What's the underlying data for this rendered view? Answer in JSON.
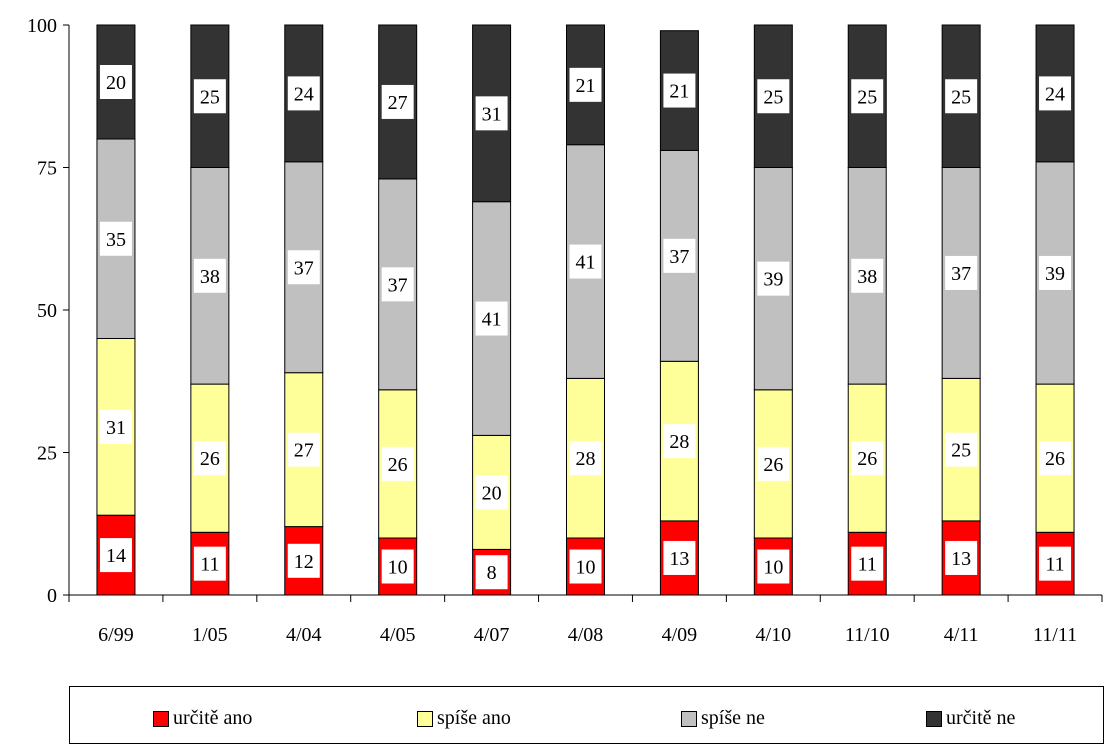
{
  "chart_data": {
    "type": "bar",
    "stacked": true,
    "categories": [
      "6/99",
      "1/05",
      "4/04",
      "4/05",
      "4/07",
      "4/08",
      "4/09",
      "4/10",
      "11/10",
      "4/11",
      "11/11"
    ],
    "series": [
      {
        "name": "určitě ano",
        "color": "#ff0000",
        "values": [
          14,
          11,
          12,
          10,
          8,
          10,
          13,
          10,
          11,
          13,
          11
        ]
      },
      {
        "name": "spíše ano",
        "color": "#ffff99",
        "values": [
          31,
          26,
          27,
          26,
          20,
          28,
          28,
          26,
          26,
          25,
          26
        ]
      },
      {
        "name": "spíše ne",
        "color": "#c0c0c0",
        "values": [
          35,
          38,
          37,
          37,
          41,
          41,
          37,
          39,
          38,
          37,
          39
        ]
      },
      {
        "name": "určitě ne",
        "color": "#333333",
        "values": [
          20,
          25,
          24,
          27,
          31,
          21,
          21,
          25,
          25,
          25,
          24
        ]
      }
    ],
    "ylim": [
      0,
      100
    ],
    "yticks": [
      "0",
      "25",
      "50",
      "75",
      "100"
    ],
    "grid": false,
    "legend_position": "bottom",
    "title": "",
    "xlabel": "",
    "ylabel": ""
  }
}
